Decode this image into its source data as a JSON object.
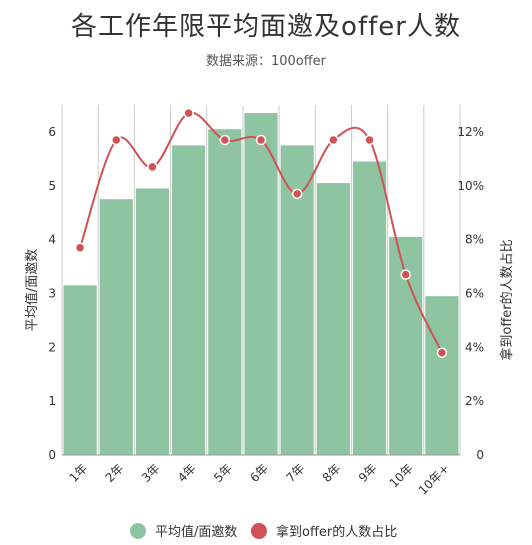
{
  "chart_data": {
    "type": "bar",
    "title": "各工作年限平均面邀及offer人数",
    "subtitle": "数据来源：100offer",
    "categories": [
      "1年",
      "2年",
      "3年",
      "4年",
      "5年",
      "6年",
      "7年",
      "8年",
      "9年",
      "10年",
      "10年+"
    ],
    "series": [
      {
        "name": "平均值/面邀数",
        "type": "bar",
        "axis": "left",
        "color": "#8ec4a2",
        "values": [
          3.15,
          4.75,
          4.95,
          5.75,
          6.05,
          6.35,
          5.75,
          5.05,
          5.45,
          4.05,
          2.95
        ]
      },
      {
        "name": "拿到offer的人数占比",
        "type": "line",
        "axis": "right",
        "color": "#cf5255",
        "values": [
          7.7,
          11.7,
          10.7,
          12.7,
          11.7,
          11.7,
          9.7,
          11.7,
          11.7,
          6.7,
          3.8
        ]
      }
    ],
    "y_left": {
      "label": "平均值/面邀数",
      "ylim": [
        0,
        6.5
      ],
      "ticks": [
        "0",
        "1",
        "2",
        "3",
        "4",
        "5",
        "6"
      ]
    },
    "y_right": {
      "label": "拿到offer的人数占比",
      "ylim": [
        0,
        13
      ],
      "ticks": [
        "0",
        "2%",
        "4%",
        "6%",
        "8%",
        "10%",
        "12%"
      ]
    },
    "grid": "vertical",
    "legend_position": "bottom"
  }
}
